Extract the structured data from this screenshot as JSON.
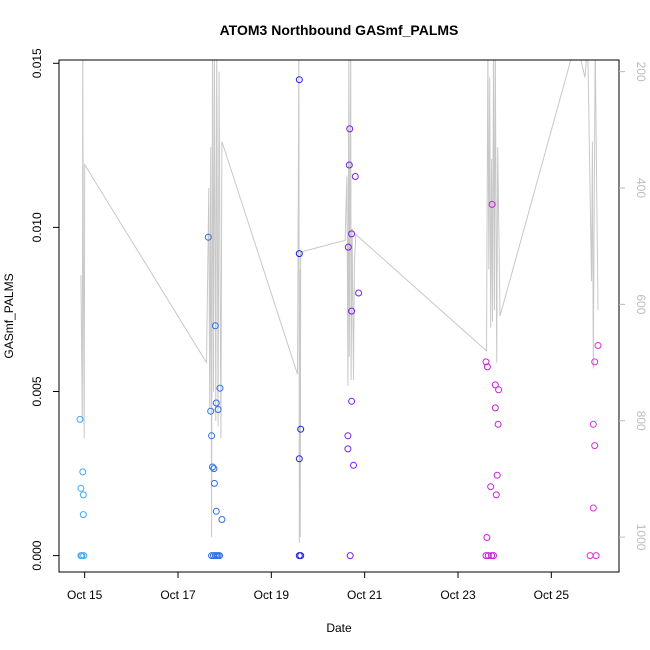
{
  "chart_data": {
    "type": "scatter",
    "title": "ATOM3 Northbound GASmf_PALMS",
    "xlabel": "Date",
    "ylabel": "GASmf_PALMS",
    "xlim": [
      14.25,
      26.25
    ],
    "ylim": [
      -0.0005,
      0.0151
    ],
    "x_ticks": [
      {
        "value": 14.8,
        "label": "Oct 15"
      },
      {
        "value": 16.8,
        "label": "Oct 17"
      },
      {
        "value": 18.8,
        "label": "Oct 19"
      },
      {
        "value": 20.8,
        "label": "Oct 21"
      },
      {
        "value": 22.8,
        "label": "Oct 23"
      },
      {
        "value": 24.8,
        "label": "Oct 25"
      }
    ],
    "y_ticks": [
      {
        "value": 0.0,
        "label": "0.000"
      },
      {
        "value": 0.005,
        "label": "0.005"
      },
      {
        "value": 0.01,
        "label": "0.010"
      },
      {
        "value": 0.015,
        "label": "0.015"
      }
    ],
    "y2_range": [
      180,
      1060
    ],
    "y2_ticks": [
      {
        "value": 200,
        "label": "200"
      },
      {
        "value": 400,
        "label": "400"
      },
      {
        "value": 600,
        "label": "600"
      },
      {
        "value": 800,
        "label": "800"
      },
      {
        "value": 1000,
        "label": "1000"
      }
    ],
    "points": [
      {
        "x": 14.7,
        "y": 0.00415,
        "color": "#3fa9f5"
      },
      {
        "x": 14.72,
        "y": 0.00205,
        "color": "#3fa9f5"
      },
      {
        "x": 14.76,
        "y": 0.00255,
        "color": "#3fa9f5"
      },
      {
        "x": 14.77,
        "y": 0.00185,
        "color": "#3fa9f5"
      },
      {
        "x": 14.77,
        "y": 0.00125,
        "color": "#3fa9f5"
      },
      {
        "x": 14.72,
        "y": 0.0,
        "color": "#3fa9f5"
      },
      {
        "x": 14.74,
        "y": 0.0,
        "color": "#3fa9f5"
      },
      {
        "x": 14.78,
        "y": 0.0,
        "color": "#3fa9f5"
      },
      {
        "x": 17.45,
        "y": 0.0097,
        "color": "#2e6ee6"
      },
      {
        "x": 17.5,
        "y": 0.0044,
        "color": "#2e6ee6"
      },
      {
        "x": 17.52,
        "y": 0.00365,
        "color": "#2e6ee6"
      },
      {
        "x": 17.54,
        "y": 0.0027,
        "color": "#2e6ee6"
      },
      {
        "x": 17.57,
        "y": 0.00265,
        "color": "#2e6ee6"
      },
      {
        "x": 17.58,
        "y": 0.0022,
        "color": "#2e6ee6"
      },
      {
        "x": 17.6,
        "y": 0.007,
        "color": "#2e6ee6"
      },
      {
        "x": 17.62,
        "y": 0.00465,
        "color": "#2e6ee6"
      },
      {
        "x": 17.66,
        "y": 0.00445,
        "color": "#2e6ee6"
      },
      {
        "x": 17.7,
        "y": 0.0051,
        "color": "#2e6ee6"
      },
      {
        "x": 17.62,
        "y": 0.00135,
        "color": "#2e6ee6"
      },
      {
        "x": 17.74,
        "y": 0.0011,
        "color": "#2e6ee6"
      },
      {
        "x": 17.52,
        "y": 0.0,
        "color": "#2e6ee6"
      },
      {
        "x": 17.56,
        "y": 0.0,
        "color": "#2e6ee6"
      },
      {
        "x": 17.6,
        "y": 0.0,
        "color": "#2e6ee6"
      },
      {
        "x": 17.63,
        "y": 0.0,
        "color": "#2e6ee6"
      },
      {
        "x": 17.66,
        "y": 0.0,
        "color": "#2e6ee6"
      },
      {
        "x": 17.69,
        "y": 0.0,
        "color": "#2e6ee6"
      },
      {
        "x": 19.4,
        "y": 0.0145,
        "color": "#1f1fe0"
      },
      {
        "x": 19.4,
        "y": 0.0092,
        "color": "#1f1fe0"
      },
      {
        "x": 19.43,
        "y": 0.00385,
        "color": "#1f1fe0"
      },
      {
        "x": 19.4,
        "y": 0.00295,
        "color": "#1f1fe0"
      },
      {
        "x": 19.4,
        "y": 0.0,
        "color": "#1f1fe0"
      },
      {
        "x": 19.43,
        "y": 0.0,
        "color": "#1f1fe0"
      },
      {
        "x": 20.48,
        "y": 0.013,
        "color": "#7a1fe6"
      },
      {
        "x": 20.47,
        "y": 0.0119,
        "color": "#7a1fe6"
      },
      {
        "x": 20.6,
        "y": 0.01155,
        "color": "#7a1fe6"
      },
      {
        "x": 20.52,
        "y": 0.0098,
        "color": "#7a1fe6"
      },
      {
        "x": 20.45,
        "y": 0.0094,
        "color": "#7a1fe6"
      },
      {
        "x": 20.67,
        "y": 0.008,
        "color": "#7a1fe6"
      },
      {
        "x": 20.52,
        "y": 0.00745,
        "color": "#7a1fe6"
      },
      {
        "x": 20.52,
        "y": 0.0047,
        "color": "#7a1fe6"
      },
      {
        "x": 20.44,
        "y": 0.00365,
        "color": "#7a1fe6"
      },
      {
        "x": 20.44,
        "y": 0.00325,
        "color": "#7a1fe6"
      },
      {
        "x": 20.56,
        "y": 0.00275,
        "color": "#7a1fe6"
      },
      {
        "x": 20.49,
        "y": 0.0,
        "color": "#7a1fe6"
      },
      {
        "x": 23.4,
        "y": 0.0059,
        "color": "#c71fd8"
      },
      {
        "x": 23.43,
        "y": 0.00575,
        "color": "#c71fd8"
      },
      {
        "x": 23.53,
        "y": 0.0107,
        "color": "#c71fd8"
      },
      {
        "x": 23.6,
        "y": 0.0052,
        "color": "#c71fd8"
      },
      {
        "x": 23.67,
        "y": 0.00505,
        "color": "#c71fd8"
      },
      {
        "x": 23.6,
        "y": 0.0045,
        "color": "#c71fd8"
      },
      {
        "x": 23.66,
        "y": 0.004,
        "color": "#c71fd8"
      },
      {
        "x": 23.64,
        "y": 0.00245,
        "color": "#c71fd8"
      },
      {
        "x": 23.5,
        "y": 0.0021,
        "color": "#c71fd8"
      },
      {
        "x": 23.62,
        "y": 0.00185,
        "color": "#c71fd8"
      },
      {
        "x": 23.42,
        "y": 0.00055,
        "color": "#c71fd8"
      },
      {
        "x": 23.4,
        "y": 0.0,
        "color": "#c71fd8"
      },
      {
        "x": 23.45,
        "y": 0.0,
        "color": "#c71fd8"
      },
      {
        "x": 23.52,
        "y": 0.0,
        "color": "#c71fd8"
      },
      {
        "x": 23.56,
        "y": 0.0,
        "color": "#c71fd8"
      },
      {
        "x": 25.8,
        "y": 0.0064,
        "color": "#e02cd0"
      },
      {
        "x": 25.73,
        "y": 0.0059,
        "color": "#e02cd0"
      },
      {
        "x": 25.7,
        "y": 0.004,
        "color": "#e02cd0"
      },
      {
        "x": 25.73,
        "y": 0.00335,
        "color": "#e02cd0"
      },
      {
        "x": 25.7,
        "y": 0.00145,
        "color": "#e02cd0"
      },
      {
        "x": 25.63,
        "y": 0.0,
        "color": "#e02cd0"
      },
      {
        "x": 25.76,
        "y": 0.0,
        "color": "#e02cd0"
      }
    ],
    "altitude_line": [
      [
        14.72,
        550
      ],
      [
        14.75,
        800
      ],
      [
        14.76,
        150
      ],
      [
        14.77,
        500
      ],
      [
        14.79,
        830
      ],
      [
        14.8,
        360
      ],
      [
        17.41,
        700
      ],
      [
        17.46,
        400
      ],
      [
        17.48,
        780
      ],
      [
        17.5,
        330
      ],
      [
        17.52,
        1000
      ],
      [
        17.54,
        150
      ],
      [
        17.56,
        750
      ],
      [
        17.58,
        150
      ],
      [
        17.61,
        800
      ],
      [
        17.63,
        150
      ],
      [
        17.66,
        810
      ],
      [
        17.68,
        200
      ],
      [
        17.72,
        830
      ],
      [
        17.74,
        320
      ],
      [
        19.36,
        720
      ],
      [
        19.39,
        150
      ],
      [
        19.4,
        1010
      ],
      [
        19.42,
        540
      ],
      [
        19.42,
        1000
      ],
      [
        19.43,
        510
      ],
      [
        20.38,
        490
      ],
      [
        20.42,
        380
      ],
      [
        20.44,
        740
      ],
      [
        20.46,
        150
      ],
      [
        20.47,
        690
      ],
      [
        20.5,
        150
      ],
      [
        20.51,
        730
      ],
      [
        20.53,
        470
      ],
      [
        20.56,
        730
      ],
      [
        20.58,
        530
      ],
      [
        20.61,
        480
      ],
      [
        23.41,
        680
      ],
      [
        23.44,
        150
      ],
      [
        23.46,
        540
      ],
      [
        23.48,
        210
      ],
      [
        23.5,
        640
      ],
      [
        23.52,
        350
      ],
      [
        23.54,
        630
      ],
      [
        23.56,
        150
      ],
      [
        23.58,
        610
      ],
      [
        23.6,
        150
      ],
      [
        23.63,
        700
      ],
      [
        23.65,
        330
      ],
      [
        23.7,
        620
      ],
      [
        25.32,
        150
      ],
      [
        25.38,
        160
      ],
      [
        25.52,
        210
      ],
      [
        25.58,
        150
      ],
      [
        25.66,
        560
      ],
      [
        25.68,
        320
      ],
      [
        25.7,
        710
      ],
      [
        25.72,
        420
      ],
      [
        25.74,
        150
      ],
      [
        25.76,
        300
      ],
      [
        25.8,
        610
      ]
    ],
    "colors": {
      "axis": "#000000",
      "altitude_line": "#c8c8c8",
      "secondary_axis": "#bdbdbd"
    }
  }
}
